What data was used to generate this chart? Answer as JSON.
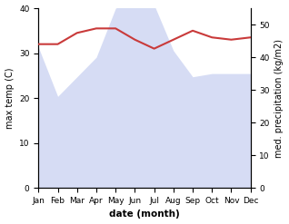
{
  "months": [
    "Jan",
    "Feb",
    "Mar",
    "Apr",
    "May",
    "Jun",
    "Jul",
    "Aug",
    "Sep",
    "Oct",
    "Nov",
    "Dec"
  ],
  "temperature": [
    32.0,
    32.0,
    34.5,
    35.5,
    35.5,
    33.0,
    31.0,
    33.0,
    35.0,
    33.5,
    33.0,
    33.5
  ],
  "precipitation": [
    43,
    28,
    34,
    40,
    55,
    58,
    56,
    42,
    34,
    35,
    35,
    35
  ],
  "temp_color": "#c93a3a",
  "precip_fill_color": "#c5cef0",
  "precip_alpha": 0.7,
  "temp_ylim": [
    0,
    40
  ],
  "precip_ylim": [
    0,
    55
  ],
  "temp_yticks": [
    0,
    10,
    20,
    30,
    40
  ],
  "precip_yticks": [
    0,
    10,
    20,
    30,
    40,
    50
  ],
  "xlabel": "date (month)",
  "ylabel_left": "max temp (C)",
  "ylabel_right": "med. precipitation (kg/m2)",
  "bg_color": "#ffffff",
  "temp_linewidth": 1.5,
  "label_fontsize": 7,
  "tick_fontsize": 6.5,
  "xlabel_fontsize": 7.5,
  "xlabel_fontweight": "bold"
}
